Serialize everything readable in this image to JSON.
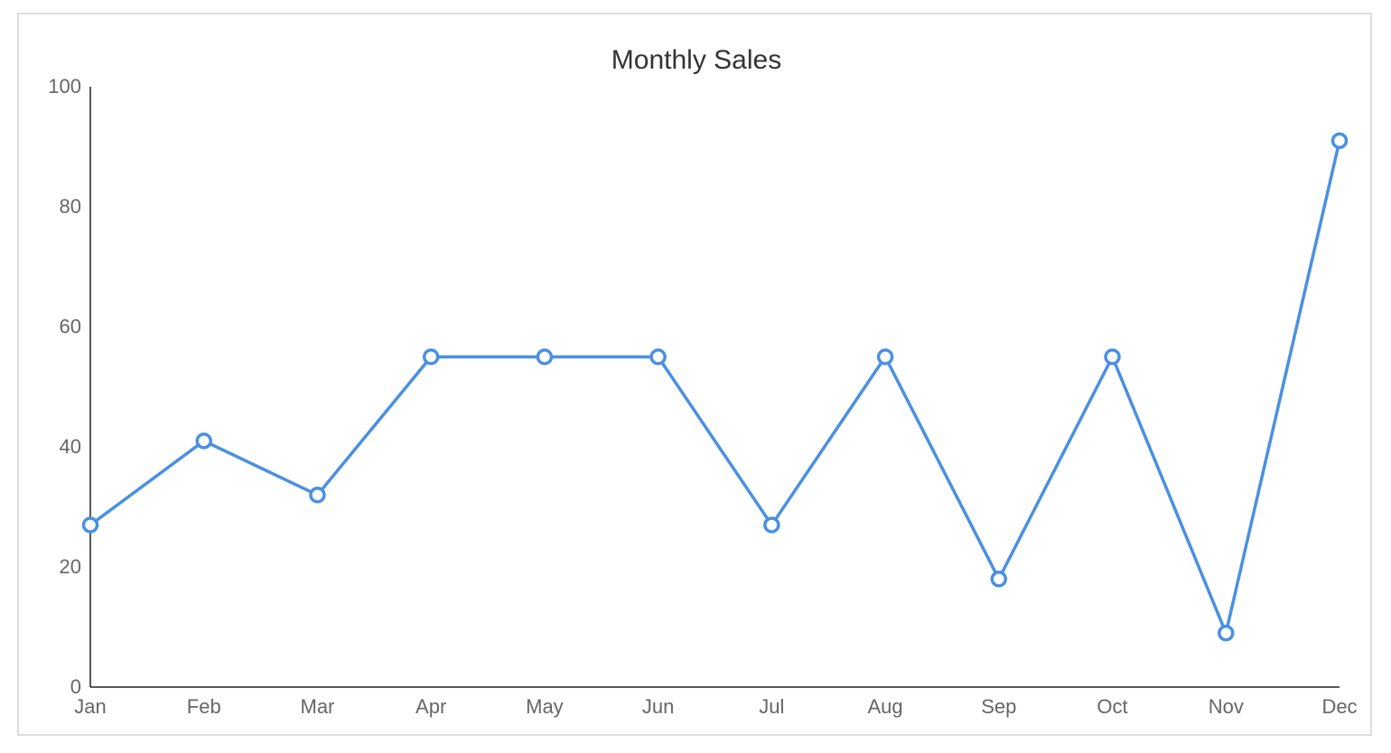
{
  "chart_data": {
    "type": "line",
    "title": "Monthly Sales",
    "xlabel": "",
    "ylabel": "",
    "categories": [
      "Jan",
      "Feb",
      "Mar",
      "Apr",
      "May",
      "Jun",
      "Jul",
      "Aug",
      "Sep",
      "Oct",
      "Nov",
      "Dec"
    ],
    "series": [
      {
        "values": [
          27,
          41,
          32,
          55,
          55,
          55,
          27,
          55,
          18,
          55,
          9,
          91
        ]
      }
    ],
    "ylim": [
      0,
      100
    ],
    "yticks": [
      0,
      20,
      40,
      60,
      80,
      100
    ],
    "grid": false,
    "legend": "none",
    "line_color": "#4a90e2"
  }
}
